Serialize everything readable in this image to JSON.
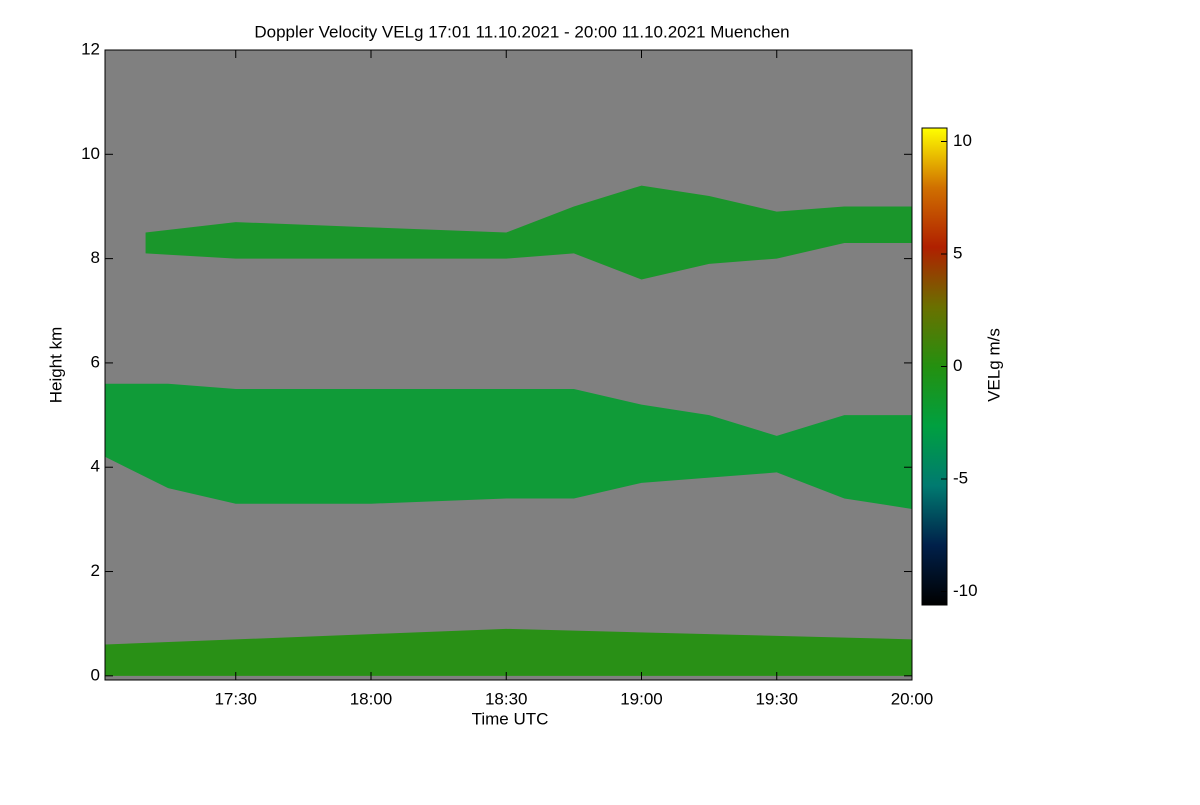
{
  "chart_data": {
    "type": "time-height",
    "title": "Doppler Velocity VELg   17:01 11.10.2021 - 20:00 11.10.2021 Muenchen",
    "xlabel": "Time UTC",
    "ylabel": "Height km",
    "xlim": [
      "17:01",
      "20:00"
    ],
    "xticks": [
      "17:30",
      "18:00",
      "18:30",
      "19:00",
      "19:30",
      "20:00"
    ],
    "ylim": [
      -0.08,
      12
    ],
    "yticks": [
      0,
      2,
      4,
      6,
      8,
      10,
      12
    ],
    "background": "#808080",
    "clabel": "VELg m/s",
    "clim": [
      -10.6,
      10.6
    ],
    "cticks": [
      -10,
      -5,
      0,
      5,
      10
    ],
    "colormap": [
      "#000000",
      "#00204a",
      "#007a70",
      "#00a040",
      "#249010",
      "#6a7000",
      "#b02000",
      "#d07000",
      "#ffff00"
    ],
    "layers": [
      {
        "x": [
          "17:10",
          "17:30",
          "18:00",
          "18:30",
          "18:45",
          "19:00",
          "19:15",
          "19:30",
          "19:45",
          "20:00"
        ],
        "top": [
          8.5,
          8.7,
          8.6,
          8.5,
          9.0,
          9.4,
          9.2,
          8.9,
          9.0,
          9.0
        ],
        "bottom": [
          8.1,
          8.0,
          8.0,
          8.0,
          8.1,
          7.6,
          7.9,
          8.0,
          8.3,
          8.3
        ],
        "value": -1.2
      },
      {
        "x": [
          "17:01",
          "17:15",
          "17:30",
          "18:00",
          "18:30",
          "18:45",
          "19:00",
          "19:15",
          "19:30",
          "19:45",
          "20:00"
        ],
        "top": [
          5.6,
          5.6,
          5.5,
          5.5,
          5.5,
          5.5,
          5.2,
          5.0,
          4.6,
          5.0,
          5.0
        ],
        "bottom": [
          4.2,
          3.6,
          3.3,
          3.3,
          3.4,
          3.4,
          3.7,
          3.8,
          3.9,
          3.4,
          3.2
        ],
        "value": -2
      },
      {
        "x": [
          "17:01",
          "18:00",
          "18:30",
          "20:00"
        ],
        "top": [
          0.6,
          0.8,
          0.9,
          0.7
        ],
        "bottom": [
          0,
          0,
          0,
          0
        ],
        "value": 0
      }
    ]
  }
}
